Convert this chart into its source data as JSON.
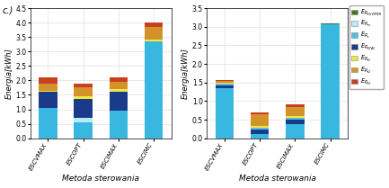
{
  "categories": [
    "ESCVMAX",
    "ESCOPT",
    "ESCIMAX",
    "ESCIMC"
  ],
  "chart1_ylim": [
    0,
    4.5
  ],
  "chart1_yticks": [
    0,
    0.5,
    1.0,
    1.5,
    2.0,
    2.5,
    3.0,
    3.5,
    4.0,
    4.5
  ],
  "chart2_ylim": [
    0,
    3.5
  ],
  "chart2_yticks": [
    0,
    0.5,
    1.0,
    1.5,
    2.0,
    2.5,
    3.0,
    3.5
  ],
  "chart1_layers": [
    {
      "key": "E_base",
      "values": [
        1.05,
        0.55,
        0.95,
        3.35
      ]
    },
    {
      "key": "E_Rin",
      "values": [
        0.0,
        0.15,
        0.0,
        0.0
      ]
    },
    {
      "key": "E_RSTAC",
      "values": [
        0.55,
        0.65,
        0.65,
        0.0
      ]
    },
    {
      "key": "E_Rc",
      "values": [
        0.0,
        0.0,
        0.0,
        0.0
      ]
    },
    {
      "key": "E_R1",
      "values": [
        0.05,
        0.1,
        0.1,
        0.05
      ]
    },
    {
      "key": "E_R2",
      "values": [
        0.25,
        0.3,
        0.25,
        0.45
      ]
    },
    {
      "key": "E_R3",
      "values": [
        0.2,
        0.15,
        0.15,
        0.15
      ]
    },
    {
      "key": "E_RCHOPPER",
      "values": [
        0.0,
        0.0,
        0.0,
        0.0
      ]
    }
  ],
  "chart2_layers": [
    {
      "key": "E_base",
      "values": [
        1.35,
        0.12,
        0.38,
        3.07
      ]
    },
    {
      "key": "E_Rin",
      "values": [
        0.0,
        0.0,
        0.0,
        0.0
      ]
    },
    {
      "key": "E_RSTAC",
      "values": [
        0.07,
        0.12,
        0.12,
        0.0
      ]
    },
    {
      "key": "E_Rc",
      "values": [
        0.04,
        0.05,
        0.05,
        0.0
      ]
    },
    {
      "key": "E_R1",
      "values": [
        0.03,
        0.05,
        0.05,
        0.0
      ]
    },
    {
      "key": "E_R2",
      "values": [
        0.04,
        0.3,
        0.25,
        0.0
      ]
    },
    {
      "key": "E_R3",
      "values": [
        0.03,
        0.05,
        0.05,
        0.0
      ]
    },
    {
      "key": "E_RCHOPPER",
      "values": [
        0.0,
        0.0,
        0.0,
        0.02
      ]
    }
  ],
  "colors": {
    "E_RCHOPPER": "#3a7a2a",
    "E_Rin": "#b8eaf8",
    "E_Rc": "#50c0dc",
    "E_RSTAC": "#1a3a8c",
    "E_R1": "#f0e840",
    "E_R2": "#d4922a",
    "E_R3": "#c84020",
    "E_base": "#38b8e0"
  },
  "legend_keys": [
    "E_RCHOPPER",
    "E_Rin",
    "E_Rc",
    "E_RSTAC",
    "E_R1",
    "E_R2",
    "E_R3"
  ],
  "legend_labels": [
    "$E_{R_{CHOPPER}}$",
    "$E_{R_{in}}$",
    "$E_{R_c}$",
    "$E_{R_{STAC}}$",
    "$E_{R_{t1}}$",
    "$E_{R_{t2}}$",
    "$E_{R_{t3}}$"
  ],
  "ylabel": "Energia[kWh]",
  "xlabel": "Metoda sterowania",
  "panel_label": "c.)",
  "bar_width": 0.52,
  "fig_bg": "#ffffff",
  "grid_color": "#d8d8d8",
  "tick_fontsize": 5.5,
  "xtick_fontsize": 5.0,
  "ylabel_fontsize": 6.0,
  "xlabel_fontsize": 6.5,
  "legend_fontsize": 4.8
}
